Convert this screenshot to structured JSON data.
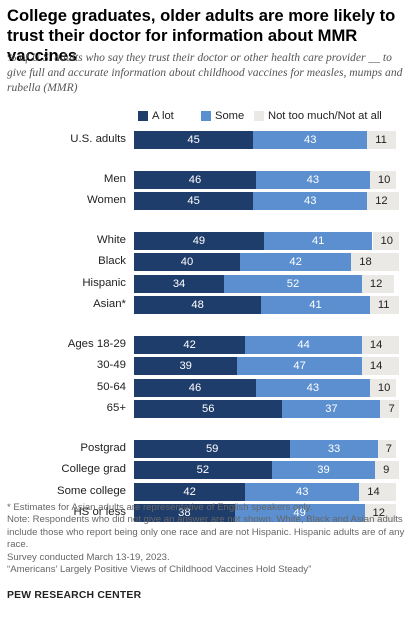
{
  "title": "College graduates, older adults are more likely to trust their doctor for information about MMR vaccines",
  "subtitle": "% of U.S. adults who say they trust their doctor or other health care provider __ to give full and accurate information about childhood vaccines for measles, mumps and rubella (MMR)",
  "colors": {
    "alot": "#1f3d6b",
    "some": "#5b8fd0",
    "nottoo": "#ebe9e5"
  },
  "chart_data": {
    "type": "bar",
    "stacked": true,
    "orientation": "horizontal",
    "legend": {
      "placement": "top",
      "entries": [
        "A lot",
        "Some",
        "Not too much/Not at all"
      ]
    },
    "series": [
      {
        "name": "A lot",
        "color": "#1f3d6b",
        "values": [
          45,
          46,
          45,
          49,
          40,
          34,
          48,
          42,
          39,
          46,
          56,
          59,
          52,
          42,
          38
        ]
      },
      {
        "name": "Some",
        "color": "#5b8fd0",
        "values": [
          43,
          43,
          43,
          41,
          42,
          52,
          41,
          44,
          47,
          43,
          37,
          33,
          39,
          43,
          49
        ]
      },
      {
        "name": "Not too much/Not at all",
        "color": "#ebe9e5",
        "values": [
          11,
          10,
          12,
          10,
          18,
          12,
          11,
          14,
          14,
          10,
          7,
          7,
          9,
          14,
          12
        ]
      }
    ],
    "categories": [
      "U.S. adults",
      "Men",
      "Women",
      "White",
      "Black",
      "Hispanic",
      "Asian*",
      "Ages 18-29",
      "30-49",
      "50-64",
      "65+",
      "Postgrad",
      "College grad",
      "Some college",
      "HS or less"
    ],
    "groups": [
      [
        0
      ],
      [
        1,
        2
      ],
      [
        3,
        4,
        5,
        6
      ],
      [
        7,
        8,
        9,
        10
      ],
      [
        11,
        12,
        13,
        14
      ]
    ],
    "xlim": [
      0,
      100
    ]
  },
  "notes": [
    "* Estimates for Asian adults are representative of English speakers only.",
    "Note: Respondents who did not give an answer are not shown. White, Black and Asian adults include those who report being only one race and are not Hispanic. Hispanic adults are of any race.",
    "Survey conducted March 13-19, 2023.",
    "“Americans’ Largely Positive Views of Childhood Vaccines Hold Steady”"
  ],
  "source": "PEW RESEARCH CENTER"
}
